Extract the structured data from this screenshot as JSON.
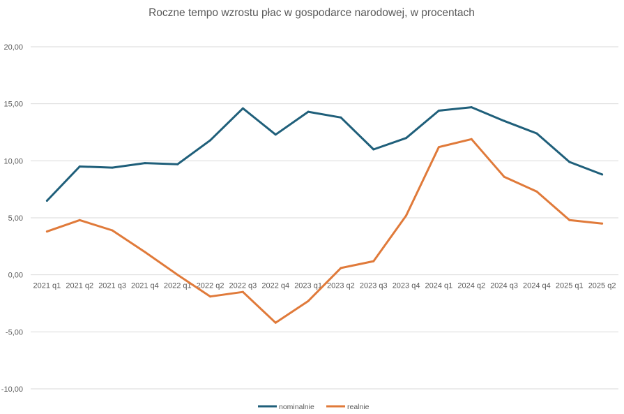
{
  "chart_data": {
    "type": "line",
    "title": "Roczne tempo wzrostu płac w gospodarce narodowej, w procentach",
    "xlabel": "",
    "ylabel": "",
    "categories": [
      "2021 q1",
      "2021 q2",
      "2021 q3",
      "2021 q4",
      "2022 q1",
      "2022 q2",
      "2022 q3",
      "2022 q4",
      "2023 q1",
      "2023 q2",
      "2023 q3",
      "2023 q4",
      "2024 q1",
      "2024 q2",
      "2024 q3",
      "2024 q4",
      "2025 q1",
      "2025 q2"
    ],
    "ylim": [
      -10,
      20
    ],
    "yticks": [
      "20,00",
      "15,00",
      "10,00",
      "5,00",
      "0,00",
      "-5,00",
      "-10,00"
    ],
    "ytick_values": [
      20,
      15,
      10,
      5,
      0,
      -5,
      -10
    ],
    "grid": true,
    "legend_position": "bottom",
    "series": [
      {
        "name": "nominalnie",
        "color": "#1f5f7a",
        "values": [
          6.5,
          9.5,
          9.4,
          9.8,
          9.7,
          11.8,
          14.6,
          12.3,
          14.3,
          13.8,
          11.0,
          12.0,
          14.4,
          14.7,
          13.5,
          12.4,
          9.9,
          8.8
        ]
      },
      {
        "name": "realnie",
        "color": "#e07a3a",
        "values": [
          3.8,
          4.8,
          3.9,
          2.0,
          0.0,
          -1.9,
          -1.5,
          -4.2,
          -2.3,
          0.6,
          1.2,
          5.2,
          11.2,
          11.9,
          8.6,
          7.3,
          4.8,
          4.5
        ]
      }
    ]
  }
}
